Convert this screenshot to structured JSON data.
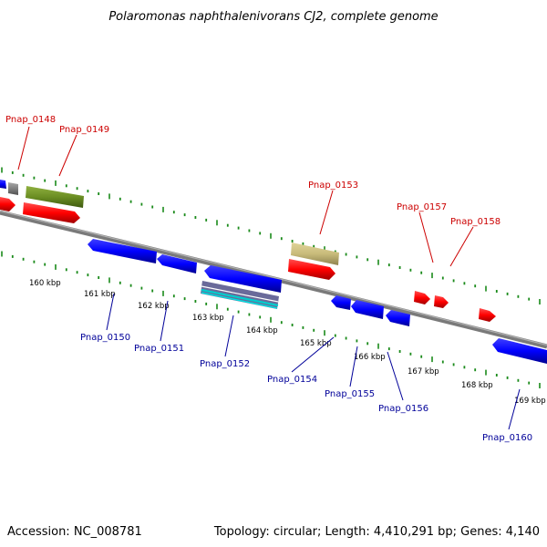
{
  "title": "Polaromonas naphthalenivorans CJ2, complete genome",
  "footer": {
    "accession": "Accession: NC_008781",
    "topology": "Topology: circular; Length: 4,410,291 bp; Genes: 4,140"
  },
  "colors": {
    "forward_strand": "#ff0000",
    "reverse_strand": "#0000ff",
    "backbone": "#808080",
    "tick": "#1a8a1a",
    "label_forward": "#cc0000",
    "label_reverse": "#000099",
    "gene_olive": "#6b8e23",
    "gene_khaki": "#c8bb7a",
    "gene_gray": "#7f7f7f",
    "gene_cyan": "#00cccc"
  },
  "kbp_ticks": [
    "160 kbp",
    "161 kbp",
    "162 kbp",
    "163 kbp",
    "164 kbp",
    "165 kbp",
    "166 kbp",
    "167 kbp",
    "168 kbp",
    "169 kbp"
  ],
  "genes_top": [
    {
      "label": "Pnap_0148"
    },
    {
      "label": "Pnap_0149"
    },
    {
      "label": "Pnap_0153"
    },
    {
      "label": "Pnap_0157"
    },
    {
      "label": "Pnap_0158"
    }
  ],
  "genes_bottom": [
    {
      "label": "Pnap_0150"
    },
    {
      "label": "Pnap_0151"
    },
    {
      "label": "Pnap_0152"
    },
    {
      "label": "Pnap_0154"
    },
    {
      "label": "Pnap_0155"
    },
    {
      "label": "Pnap_0156"
    },
    {
      "label": "Pnap_0160"
    }
  ]
}
